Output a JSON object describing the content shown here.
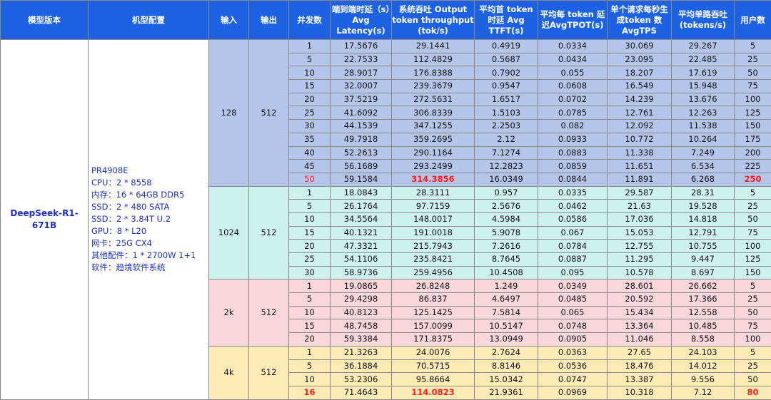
{
  "table": {
    "header": [
      "模型版本",
      "机型配置",
      "输入",
      "输出",
      "并发数",
      "端到端时延（s）Avg Latency(s)",
      "系统吞吐 Output token throughput (tok/s)",
      "平均首 token 时延 Avg TTFT(s)",
      "平均每 token 延迟AvgTPOT(s)",
      "单个请求每秒生成token 数 AvgTPS",
      "平均单路吞吐 (tokens/s)",
      "用户数"
    ],
    "model": "DeepSeek-R1-671B",
    "config": [
      "PR4908E",
      "CPU：2 * 8558",
      "内存：16 * 64GB DDR5",
      "SSD：2 * 480 SATA",
      "SSD：2 * 3.84T U.2",
      "GPU：8 * L20",
      "网卡：25G CX4",
      "其他配件：1 * 2700W 1+1",
      "软件：趋境软件系统"
    ],
    "accent_color": "#ff1a1a",
    "groups": [
      {
        "input": "128",
        "output": "512",
        "color": "#b4c5ea",
        "rows": [
          [
            "1",
            "17.5676",
            "29.1441",
            "0.4919",
            "0.0334",
            "30.069",
            "29.267",
            "5"
          ],
          [
            "5",
            "22.7533",
            "112.4829",
            "0.5687",
            "0.0434",
            "23.095",
            "22.485",
            "25"
          ],
          [
            "10",
            "28.9017",
            "176.8388",
            "0.7902",
            "0.055",
            "18.207",
            "17.619",
            "50"
          ],
          [
            "15",
            "32.0007",
            "239.3679",
            "0.9547",
            "0.0608",
            "16.549",
            "15.948",
            "75"
          ],
          [
            "20",
            "37.5219",
            "272.5631",
            "1.6517",
            "0.0702",
            "14.239",
            "13.676",
            "100"
          ],
          [
            "25",
            "41.6092",
            "306.8339",
            "1.5103",
            "0.0785",
            "12.761",
            "12.263",
            "125"
          ],
          [
            "30",
            "44.1539",
            "347.1255",
            "2.2503",
            "0.082",
            "12.092",
            "11.538",
            "150"
          ],
          [
            "35",
            "49.7918",
            "359.2695",
            "2.12",
            "0.0933",
            "10.772",
            "10.264",
            "175"
          ],
          [
            "40",
            "52.2613",
            "290.1164",
            "7.1274",
            "0.0883",
            "11.338",
            "7.249",
            "200"
          ],
          [
            "45",
            "56.1689",
            "293.2499",
            "12.2823",
            "0.0859",
            "11.651",
            "6.534",
            "225"
          ],
          [
            "50",
            "59.1584",
            "314.3856",
            "16.0349",
            "0.0844",
            "11.891",
            "6.268",
            "250"
          ]
        ],
        "emphasis_rows": [
          false,
          false,
          false,
          false,
          false,
          false,
          false,
          false,
          false,
          false,
          true
        ]
      },
      {
        "input": "1024",
        "output": "512",
        "color": "#cdf1ec",
        "rows": [
          [
            "1",
            "18.0843",
            "28.3111",
            "0.957",
            "0.0335",
            "29.587",
            "28.31",
            "5"
          ],
          [
            "5",
            "26.1764",
            "97.7159",
            "2.5676",
            "0.0462",
            "21.63",
            "19.528",
            "25"
          ],
          [
            "10",
            "34.5564",
            "148.0017",
            "4.5984",
            "0.0586",
            "17.036",
            "14.818",
            "50"
          ],
          [
            "15",
            "40.1321",
            "191.0018",
            "5.9078",
            "0.067",
            "15.053",
            "12.791",
            "75"
          ],
          [
            "20",
            "47.3321",
            "215.7943",
            "7.2616",
            "0.0784",
            "12.755",
            "10.755",
            "100"
          ],
          [
            "25",
            "54.1106",
            "235.8421",
            "8.7645",
            "0.0887",
            "11.295",
            "9.447",
            "125"
          ],
          [
            "30",
            "58.9736",
            "259.4956",
            "10.4508",
            "0.095",
            "10.578",
            "8.697",
            "150"
          ]
        ],
        "emphasis_rows": [
          false,
          false,
          false,
          false,
          false,
          false,
          false
        ]
      },
      {
        "input": "2k",
        "output": "512",
        "color": "#f8d6dc",
        "rows": [
          [
            "1",
            "19.0865",
            "26.8248",
            "1.249",
            "0.0349",
            "28.601",
            "26.662",
            "5"
          ],
          [
            "5",
            "29.4298",
            "86.837",
            "4.6497",
            "0.0485",
            "20.592",
            "17.366",
            "25"
          ],
          [
            "10",
            "40.8123",
            "125.1425",
            "7.5814",
            "0.065",
            "15.434",
            "12.558",
            "50"
          ],
          [
            "15",
            "48.7458",
            "157.0099",
            "10.5147",
            "0.0748",
            "13.364",
            "10.485",
            "75"
          ],
          [
            "20",
            "59.3384",
            "171.8375",
            "13.0949",
            "0.0905",
            "11.046",
            "8.558",
            "100"
          ]
        ],
        "emphasis_rows": [
          false,
          false,
          false,
          false,
          false
        ]
      },
      {
        "input": "4k",
        "output": "512",
        "color": "#fdeab5",
        "rows": [
          [
            "1",
            "21.3263",
            "24.0076",
            "2.7624",
            "0.0363",
            "27.65",
            "24.103",
            "5"
          ],
          [
            "5",
            "36.1884",
            "70.5715",
            "8.8146",
            "0.0536",
            "18.476",
            "14.012",
            "25"
          ],
          [
            "10",
            "53.2306",
            "95.8664",
            "15.0342",
            "0.0747",
            "13.387",
            "9.556",
            "50"
          ],
          [
            "16",
            "71.4643",
            "114.0823",
            "21.9361",
            "0.0969",
            "10.318",
            "7.12",
            "80"
          ]
        ],
        "emphasis_rows": [
          false,
          false,
          false,
          true
        ]
      }
    ]
  }
}
